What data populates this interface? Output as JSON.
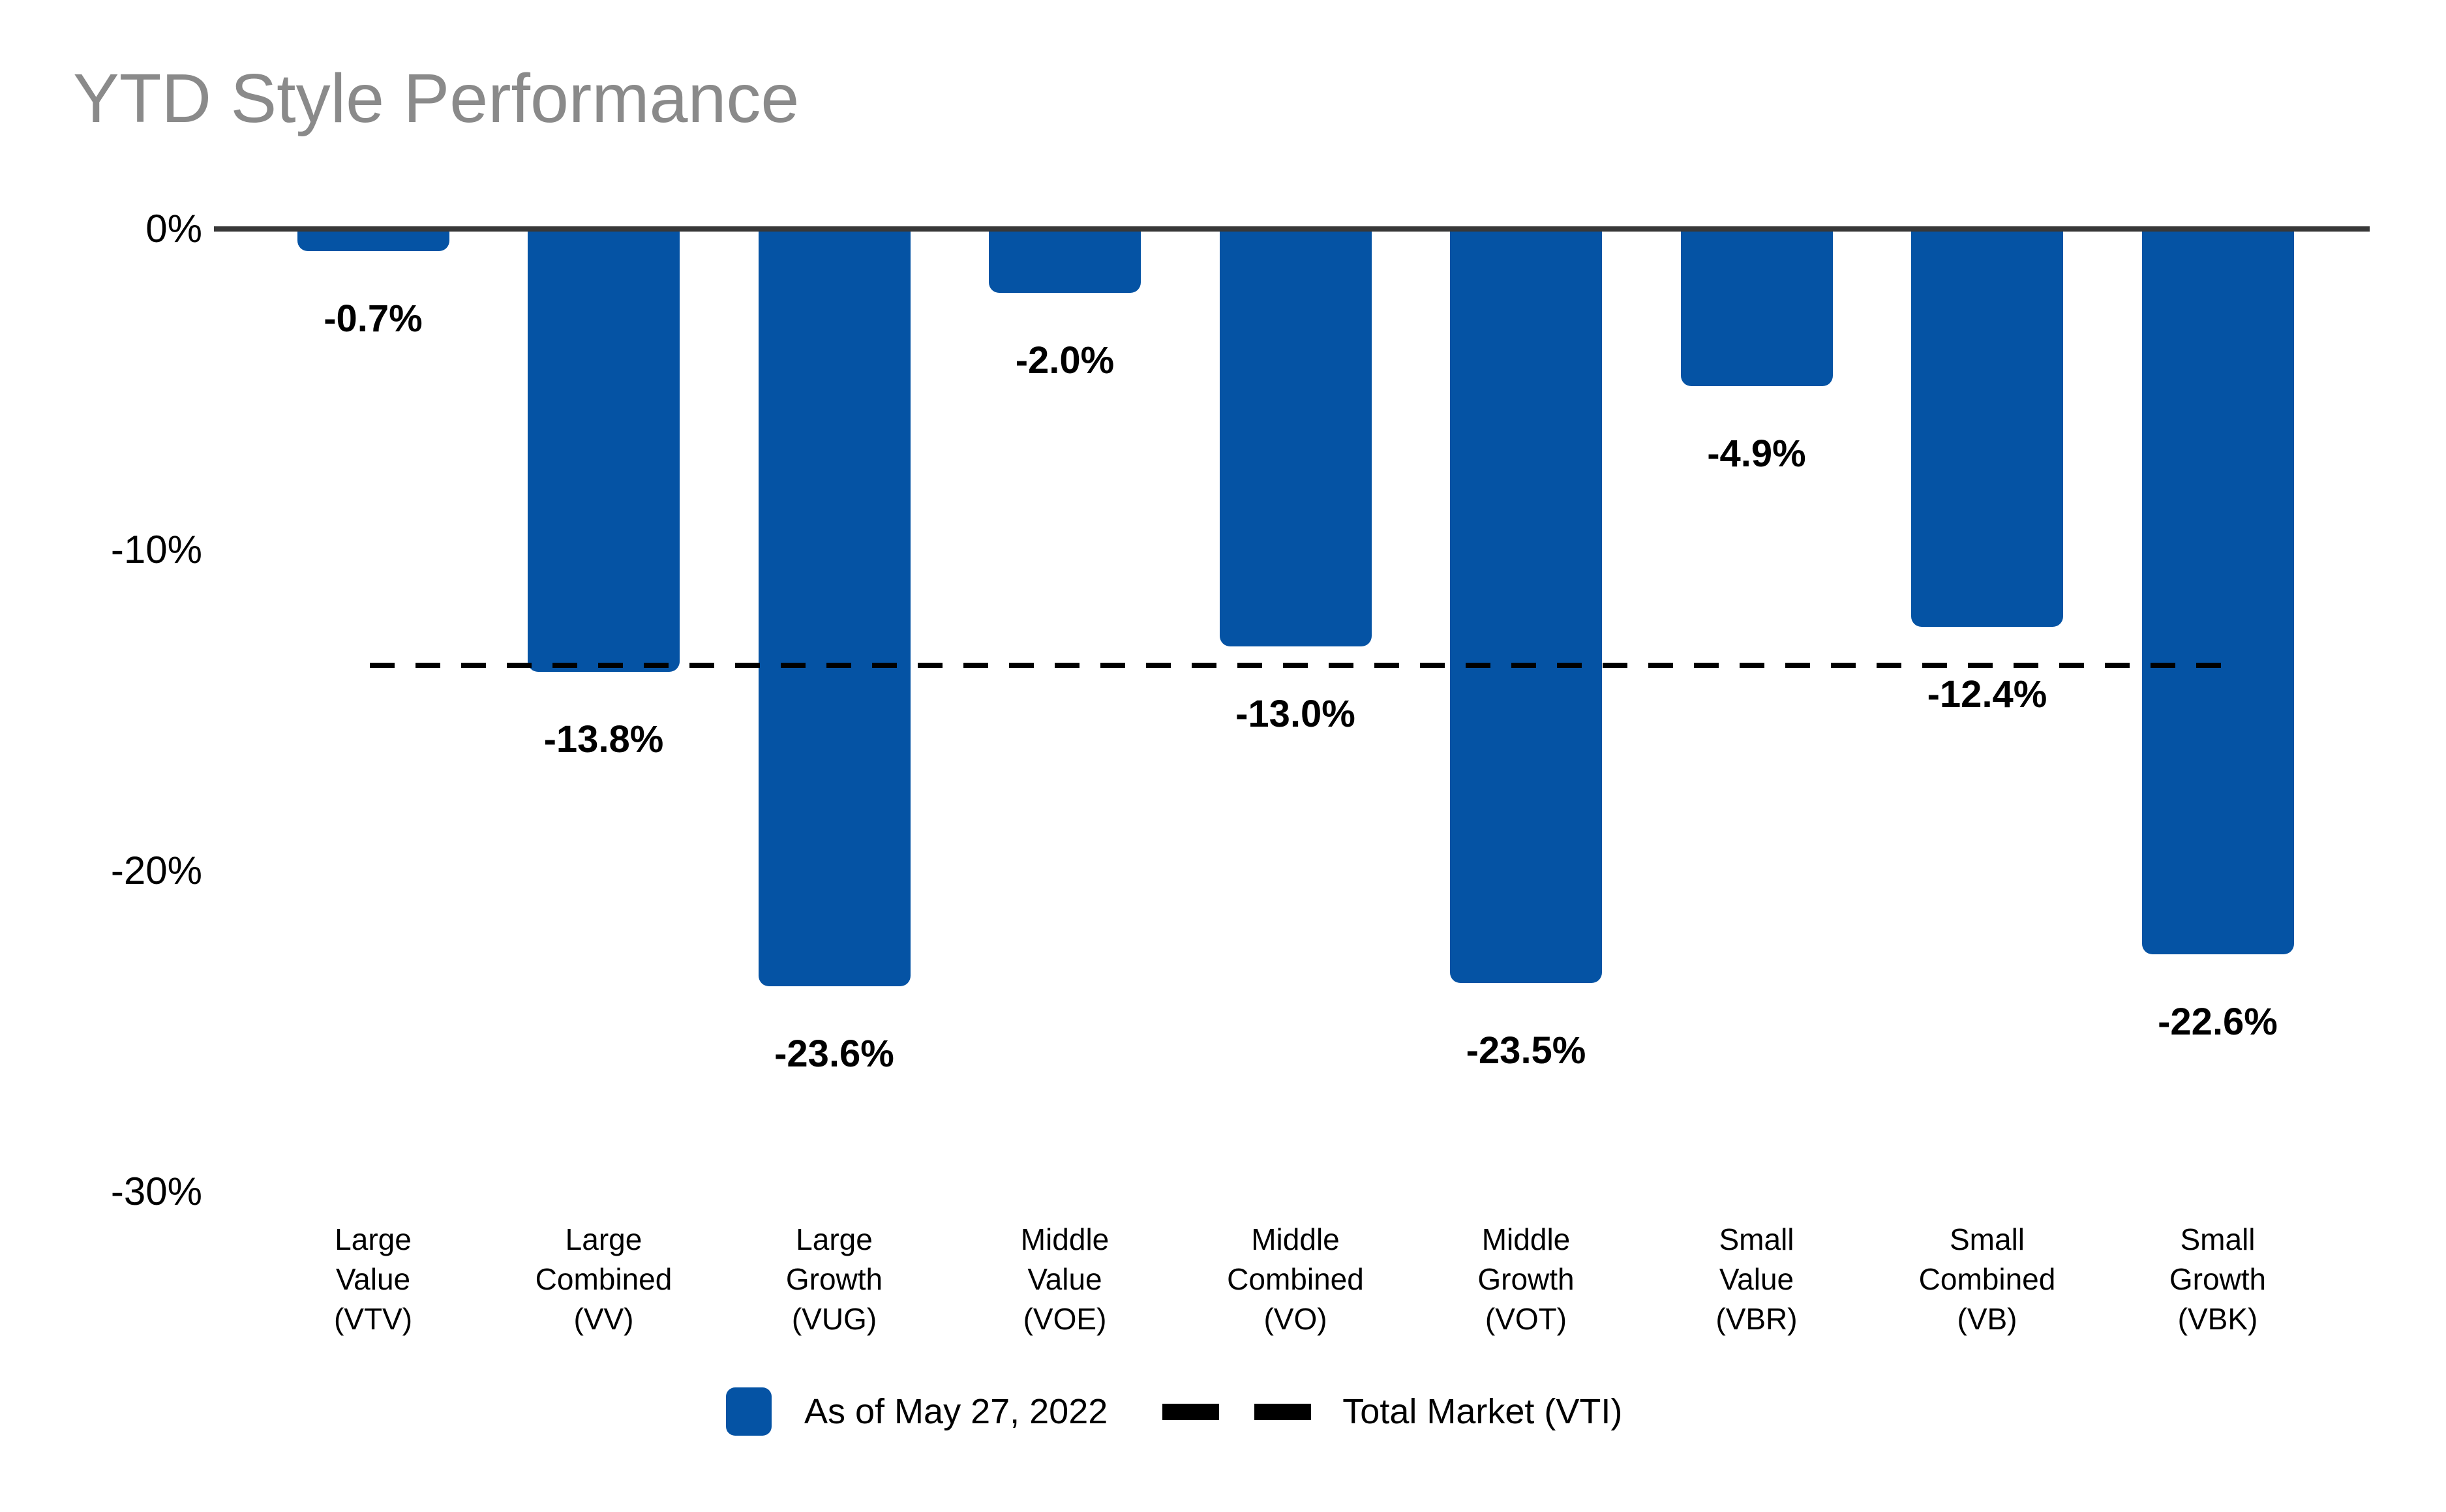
{
  "title": "YTD Style Performance",
  "colors": {
    "bar": "#0553A4",
    "title_text": "#8a8a8a",
    "axis_line": "#383838",
    "labels": "#000000",
    "reference_line": "#000000"
  },
  "y_axis": {
    "ticks": [
      {
        "label": "0%",
        "value": 0
      },
      {
        "label": "-10%",
        "value": -10
      },
      {
        "label": "-20%",
        "value": -20
      },
      {
        "label": "-30%",
        "value": -30
      }
    ]
  },
  "legend": {
    "series_label": "As of May 27, 2022",
    "reference_label": "Total Market (VTI)"
  },
  "chart_data": {
    "type": "bar",
    "title": "YTD Style Performance",
    "categories": [
      "Large Value (VTV)",
      "Large Combined (VV)",
      "Large Growth (VUG)",
      "Middle Value (VOE)",
      "Middle Combined (VO)",
      "Middle Growth (VOT)",
      "Small Value (VBR)",
      "Small Combined (VB)",
      "Small Growth (VBK)"
    ],
    "category_lines": [
      [
        "Large",
        "Value",
        "(VTV)"
      ],
      [
        "Large",
        "Combined",
        "(VV)"
      ],
      [
        "Large",
        "Growth",
        "(VUG)"
      ],
      [
        "Middle",
        "Value",
        "(VOE)"
      ],
      [
        "Middle",
        "Combined",
        "(VO)"
      ],
      [
        "Middle",
        "Growth",
        "(VOT)"
      ],
      [
        "Small",
        "Value",
        "(VBR)"
      ],
      [
        "Small",
        "Combined",
        "(VB)"
      ],
      [
        "Small",
        "Growth",
        "(VBK)"
      ]
    ],
    "values": [
      -0.7,
      -13.8,
      -23.6,
      -2.0,
      -13.0,
      -23.5,
      -4.9,
      -12.4,
      -22.6
    ],
    "value_labels": [
      "-0.7%",
      "-13.8%",
      "-23.6%",
      "-2.0%",
      "-13.0%",
      "-23.5%",
      "-4.9%",
      "-12.4%",
      "-22.6%"
    ],
    "xlabel": "",
    "ylabel": "",
    "ylim": [
      -30,
      0
    ],
    "grid": false,
    "legend_position": "bottom",
    "series_name": "As of May 27, 2022",
    "reference_line": {
      "label": "Total Market (VTI)",
      "value": -13.6,
      "style": "dashed"
    }
  }
}
